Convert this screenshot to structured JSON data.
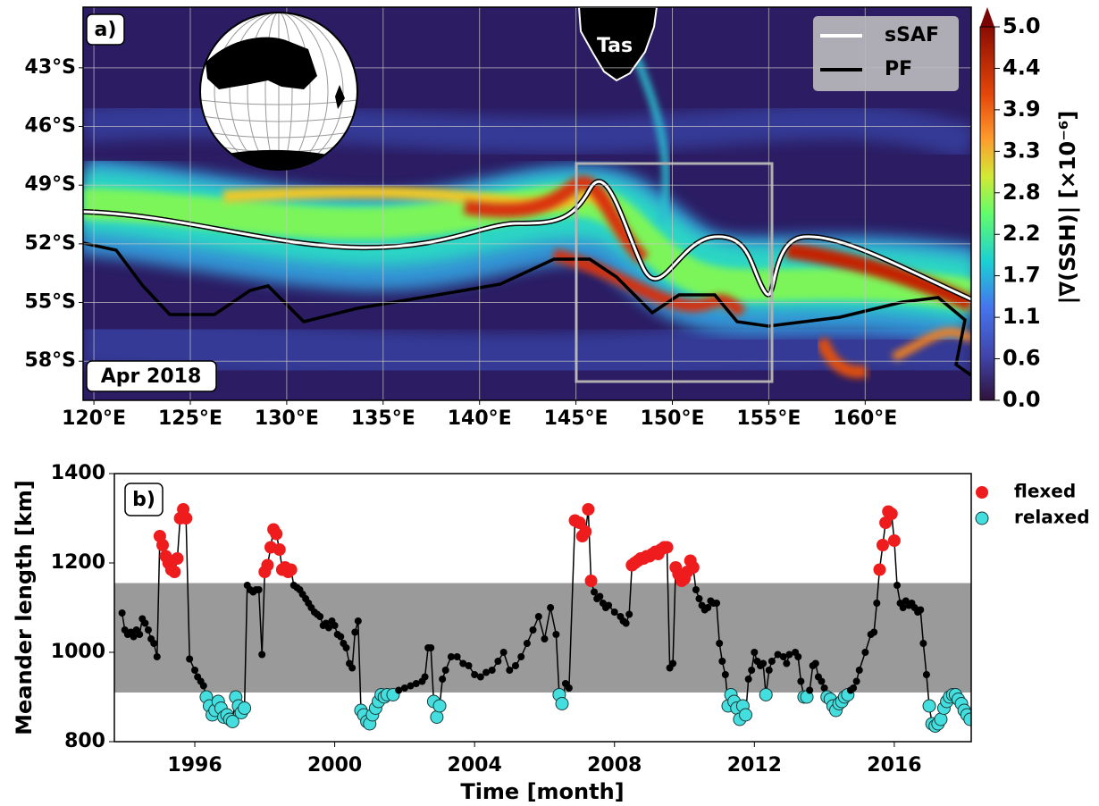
{
  "chart_data": [
    {
      "type": "map",
      "panel_label": "a)",
      "date_label": "Apr 2018",
      "place_label": "Tas",
      "xlim": [
        119.44,
        165.5
      ],
      "ylim": [
        -60,
        -39.9
      ],
      "xticks": [
        {
          "value": 120,
          "label": "120°E"
        },
        {
          "value": 125,
          "label": "125°E"
        },
        {
          "value": 130,
          "label": "130°E"
        },
        {
          "value": 135,
          "label": "135°E"
        },
        {
          "value": 140,
          "label": "140°E"
        },
        {
          "value": 145,
          "label": "145°E"
        },
        {
          "value": 150,
          "label": "150°E"
        },
        {
          "value": 155,
          "label": "155°E"
        },
        {
          "value": 160,
          "label": "160°E"
        }
      ],
      "yticks": [
        {
          "value": -43,
          "label": "43°S"
        },
        {
          "value": -46,
          "label": "46°S"
        },
        {
          "value": -49,
          "label": "49°S"
        },
        {
          "value": -52,
          "label": "52°S"
        },
        {
          "value": -55,
          "label": "55°S"
        },
        {
          "value": -58,
          "label": "58°S"
        }
      ],
      "grid": true,
      "fronts": [
        {
          "name": "sSAF",
          "color": "#ffffff"
        },
        {
          "name": "PF",
          "color": "#000000"
        }
      ],
      "colorbar": {
        "label": "|∇(SSH)| [×10⁻⁶]",
        "lim": [
          0,
          5
        ],
        "ticks": [
          {
            "value": 0,
            "label": "0.0"
          },
          {
            "value": 0.556,
            "label": "0.6"
          },
          {
            "value": 1.111,
            "label": "1.1"
          },
          {
            "value": 1.667,
            "label": "1.7"
          },
          {
            "value": 2.222,
            "label": "2.2"
          },
          {
            "value": 2.778,
            "label": "2.8"
          },
          {
            "value": 3.333,
            "label": "3.3"
          },
          {
            "value": 3.889,
            "label": "3.9"
          },
          {
            "value": 4.444,
            "label": "4.4"
          },
          {
            "value": 5,
            "label": "5.0"
          }
        ]
      }
    },
    {
      "type": "line",
      "panel_label": "b)",
      "x_label": "Time [month]",
      "y_label": "Meander length [km]",
      "x": [
        1993.92,
        1994.0,
        1994.08,
        1994.17,
        1994.25,
        1994.33,
        1994.42,
        1994.5,
        1994.58,
        1994.67,
        1994.75,
        1994.83,
        1994.92,
        1995.0,
        1995.08,
        1995.17,
        1995.25,
        1995.33,
        1995.42,
        1995.5,
        1995.58,
        1995.67,
        1995.75,
        1995.85,
        1996.0,
        1996.08,
        1996.17,
        1996.25,
        1996.33,
        1996.42,
        1996.5,
        1996.58,
        1996.67,
        1996.75,
        1996.83,
        1996.92,
        1997.0,
        1997.08,
        1997.17,
        1997.25,
        1997.33,
        1997.42,
        1997.5,
        1997.58,
        1997.67,
        1997.75,
        1997.83,
        1997.92,
        1998.0,
        1998.08,
        1998.17,
        1998.25,
        1998.33,
        1998.42,
        1998.5,
        1998.58,
        1998.67,
        1998.75,
        1998.83,
        1998.92,
        1999.0,
        1999.08,
        1999.17,
        1999.25,
        1999.33,
        1999.42,
        1999.5,
        1999.58,
        1999.67,
        1999.75,
        1999.83,
        1999.92,
        2000.0,
        2000.08,
        2000.17,
        2000.25,
        2000.33,
        2000.42,
        2000.5,
        2000.58,
        2000.67,
        2000.75,
        2000.83,
        2000.92,
        2001.0,
        2001.08,
        2001.17,
        2001.25,
        2001.33,
        2001.42,
        2001.5,
        2001.67,
        2001.83,
        2002.0,
        2002.17,
        2002.33,
        2002.5,
        2002.58,
        2002.67,
        2002.75,
        2002.83,
        2002.92,
        2003.0,
        2003.08,
        2003.17,
        2003.33,
        2003.5,
        2003.67,
        2003.83,
        2004.0,
        2004.17,
        2004.33,
        2004.5,
        2004.67,
        2004.83,
        2005.0,
        2005.17,
        2005.33,
        2005.5,
        2005.67,
        2005.83,
        2006.0,
        2006.17,
        2006.33,
        2006.42,
        2006.5,
        2006.6,
        2006.7,
        2006.87,
        2007.0,
        2007.08,
        2007.17,
        2007.25,
        2007.33,
        2007.42,
        2007.5,
        2007.58,
        2007.67,
        2007.75,
        2007.83,
        2008.0,
        2008.17,
        2008.25,
        2008.33,
        2008.42,
        2008.5,
        2008.58,
        2008.67,
        2008.75,
        2008.83,
        2008.92,
        2009.0,
        2009.08,
        2009.17,
        2009.25,
        2009.33,
        2009.42,
        2009.5,
        2009.58,
        2009.67,
        2009.75,
        2009.83,
        2009.92,
        2010.0,
        2010.08,
        2010.17,
        2010.25,
        2010.33,
        2010.42,
        2010.5,
        2010.58,
        2010.67,
        2010.75,
        2010.83,
        2010.92,
        2011.0,
        2011.08,
        2011.17,
        2011.25,
        2011.33,
        2011.42,
        2011.5,
        2011.58,
        2011.67,
        2011.75,
        2011.83,
        2011.92,
        2012.0,
        2012.08,
        2012.17,
        2012.25,
        2012.33,
        2012.42,
        2012.5,
        2012.67,
        2012.83,
        2012.92,
        2013.0,
        2013.17,
        2013.25,
        2013.33,
        2013.42,
        2013.5,
        2013.58,
        2013.67,
        2013.75,
        2013.83,
        2013.92,
        2014.0,
        2014.08,
        2014.17,
        2014.25,
        2014.33,
        2014.42,
        2014.5,
        2014.58,
        2014.67,
        2014.75,
        2014.83,
        2014.92,
        2015.0,
        2015.17,
        2015.33,
        2015.42,
        2015.5,
        2015.58,
        2015.67,
        2015.75,
        2015.83,
        2015.92,
        2016.0,
        2016.08,
        2016.17,
        2016.25,
        2016.33,
        2016.42,
        2016.5,
        2016.58,
        2016.67,
        2016.75,
        2016.83,
        2016.92,
        2017.0,
        2017.08,
        2017.17,
        2017.25,
        2017.33,
        2017.42,
        2017.5,
        2017.58,
        2017.67,
        2017.75,
        2017.83,
        2017.92,
        2018.0,
        2018.08,
        2018.17
      ],
      "values": [
        1088,
        1050,
        1040,
        1045,
        1035,
        1050,
        1040,
        1075,
        1065,
        1050,
        1030,
        1020,
        990,
        1260,
        1240,
        1215,
        1200,
        1185,
        1180,
        1210,
        1300,
        1320,
        1300,
        985,
        960,
        945,
        935,
        925,
        900,
        880,
        860,
        870,
        890,
        875,
        855,
        860,
        850,
        845,
        900,
        880,
        865,
        875,
        1150,
        1140,
        1135,
        1140,
        1140,
        995,
        1180,
        1195,
        1235,
        1275,
        1265,
        1230,
        1185,
        1190,
        1180,
        1185,
        1150,
        1145,
        1140,
        1130,
        1120,
        1110,
        1100,
        1090,
        1085,
        1080,
        1060,
        1065,
        1055,
        1070,
        1060,
        1040,
        1035,
        1020,
        1010,
        975,
        965,
        1045,
        1070,
        870,
        860,
        845,
        840,
        860,
        875,
        890,
        905,
        900,
        905,
        905,
        915,
        920,
        925,
        930,
        935,
        945,
        1010,
        1010,
        890,
        855,
        880,
        940,
        960,
        990,
        990,
        975,
        970,
        950,
        945,
        955,
        960,
        980,
        1000,
        960,
        970,
        990,
        1020,
        1050,
        1080,
        1030,
        1100,
        1040,
        905,
        885,
        930,
        920,
        1295,
        1290,
        1260,
        1270,
        1320,
        1160,
        1135,
        1120,
        1125,
        1110,
        1100,
        1105,
        1090,
        1080,
        1070,
        1065,
        1085,
        1195,
        1200,
        1205,
        1210,
        1210,
        1215,
        1215,
        1220,
        1225,
        1220,
        1230,
        1235,
        1235,
        965,
        975,
        1190,
        1175,
        1160,
        1165,
        1180,
        1205,
        1190,
        1140,
        1120,
        1105,
        1095,
        1100,
        1115,
        1110,
        1110,
        1020,
        980,
        950,
        880,
        905,
        890,
        875,
        850,
        880,
        860,
        940,
        960,
        1000,
        980,
        970,
        975,
        905,
        960,
        980,
        995,
        990,
        975,
        995,
        1000,
        990,
        935,
        900,
        900,
        915,
        970,
        975,
        945,
        935,
        920,
        900,
        895,
        880,
        870,
        885,
        890,
        900,
        905,
        915,
        920,
        935,
        960,
        1000,
        1040,
        1045,
        1110,
        1185,
        1240,
        1290,
        1315,
        1310,
        1250,
        1150,
        1110,
        1100,
        1115,
        1105,
        1110,
        1100,
        1090,
        1095,
        1020,
        950,
        880,
        840,
        835,
        840,
        850,
        875,
        890,
        900,
        905,
        905,
        895,
        885,
        870,
        860,
        850
      ],
      "color": "#000000",
      "xlim": [
        1993.7,
        2018.2
      ],
      "ylim": [
        800,
        1400
      ],
      "xticks": [
        1996,
        2000,
        2004,
        2008,
        2012,
        2016
      ],
      "yticks": [
        800,
        1000,
        1200,
        1400
      ],
      "shaded_range": [
        910,
        1155
      ],
      "shade_color": "#9a9a9a",
      "classes": [
        {
          "name": "flexed",
          "color": "#ee1c1c"
        },
        {
          "name": "relaxed",
          "color": "#44dede"
        }
      ],
      "legend": "outside-right"
    }
  ]
}
